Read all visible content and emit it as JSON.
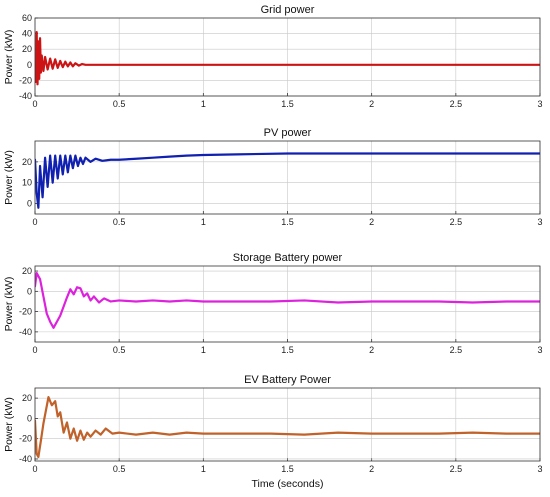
{
  "chart_data": [
    {
      "type": "line",
      "title": "Grid power",
      "ylabel": "Power (kW)",
      "xlabel": "",
      "xlim": [
        0,
        3
      ],
      "ylim": [
        -40,
        60
      ],
      "xticks": [
        0,
        0.5,
        1,
        1.5,
        2,
        2.5,
        3
      ],
      "xtick_labels": [
        "0",
        "0.5",
        "1",
        "1.5",
        "2",
        "2.5",
        "3"
      ],
      "yticks": [
        -40,
        -20,
        0,
        20,
        40,
        60
      ],
      "ytick_labels": [
        "-40",
        "-20",
        "0",
        "20",
        "40",
        "60"
      ],
      "grid": true,
      "color": "#cc1414",
      "series": [
        {
          "x": [
            0,
            0.005,
            0.01,
            0.015,
            0.02,
            0.025,
            0.03,
            0.035,
            0.04,
            0.05,
            0.06,
            0.075,
            0.09,
            0.105,
            0.12,
            0.135,
            0.15,
            0.165,
            0.18,
            0.195,
            0.21,
            0.225,
            0.24,
            0.26,
            0.28,
            0.3,
            0.35,
            0.4,
            0.5,
            0.7,
            1,
            1.5,
            2,
            2.5,
            3
          ],
          "y": [
            0,
            -22,
            42,
            -25,
            30,
            -18,
            34,
            -10,
            12,
            -8,
            10,
            -6,
            8,
            -5,
            7,
            -4,
            5,
            -3,
            4,
            -2,
            3,
            -2,
            2,
            -1,
            1,
            0,
            0,
            0,
            0,
            0,
            0,
            0,
            0,
            0,
            0
          ]
        }
      ]
    },
    {
      "type": "line",
      "title": "PV power",
      "ylabel": "Power (kW)",
      "xlabel": "",
      "xlim": [
        0,
        3
      ],
      "ylim": [
        -5,
        30
      ],
      "xticks": [
        0,
        0.5,
        1,
        1.5,
        2,
        2.5,
        3
      ],
      "xtick_labels": [
        "0",
        "0.5",
        "1",
        "1.5",
        "2",
        "2.5",
        "3"
      ],
      "yticks": [
        0,
        10,
        20
      ],
      "ytick_labels": [
        "0",
        "10",
        "20"
      ],
      "grid": true,
      "color": "#1020b0",
      "series": [
        {
          "x": [
            0,
            0.01,
            0.02,
            0.03,
            0.045,
            0.06,
            0.075,
            0.09,
            0.105,
            0.12,
            0.135,
            0.15,
            0.165,
            0.18,
            0.195,
            0.21,
            0.225,
            0.24,
            0.255,
            0.27,
            0.285,
            0.3,
            0.33,
            0.36,
            0.4,
            0.45,
            0.5,
            0.6,
            0.7,
            0.8,
            0.9,
            1,
            1.2,
            1.5,
            2,
            2.5,
            3
          ],
          "y": [
            21,
            5,
            -2,
            18,
            3,
            22,
            8,
            23,
            10,
            23,
            12,
            23,
            14,
            23,
            15,
            23,
            17,
            23,
            18,
            22,
            19,
            22,
            20,
            21.5,
            20.5,
            21,
            21,
            21.5,
            22,
            22.5,
            23,
            23.3,
            23.6,
            24,
            24,
            24,
            24
          ]
        }
      ]
    },
    {
      "type": "line",
      "title": "Storage Battery power",
      "ylabel": "Power (kW)",
      "xlabel": "",
      "xlim": [
        0,
        3
      ],
      "ylim": [
        -50,
        25
      ],
      "xticks": [
        0,
        0.5,
        1,
        1.5,
        2,
        2.5,
        3
      ],
      "xtick_labels": [
        "0",
        "0.5",
        "1",
        "1.5",
        "2",
        "2.5",
        "3"
      ],
      "yticks": [
        -40,
        -20,
        0,
        20
      ],
      "ytick_labels": [
        "-40",
        "-20",
        "0",
        "20"
      ],
      "grid": true,
      "color": "#dd22dd",
      "series": [
        {
          "x": [
            0,
            0.01,
            0.03,
            0.05,
            0.07,
            0.09,
            0.11,
            0.13,
            0.15,
            0.17,
            0.19,
            0.21,
            0.23,
            0.25,
            0.27,
            0.29,
            0.31,
            0.33,
            0.35,
            0.38,
            0.41,
            0.45,
            0.5,
            0.6,
            0.7,
            0.8,
            0.9,
            1,
            1.2,
            1.4,
            1.6,
            1.8,
            2,
            2.2,
            2.4,
            2.6,
            2.8,
            3
          ],
          "y": [
            5,
            18,
            12,
            -5,
            -22,
            -30,
            -36,
            -30,
            -24,
            -15,
            -6,
            2,
            -3,
            4,
            3,
            -5,
            -2,
            -9,
            -5,
            -11,
            -7,
            -10,
            -9,
            -10,
            -9,
            -10,
            -9,
            -10,
            -10,
            -10,
            -9,
            -11,
            -10,
            -10,
            -10,
            -11,
            -10,
            -10
          ]
        }
      ]
    },
    {
      "type": "line",
      "title": "EV Battery Power",
      "ylabel": "Power (kW)",
      "xlabel": "Time (seconds)",
      "xlim": [
        0,
        3
      ],
      "ylim": [
        -42,
        30
      ],
      "xticks": [
        0,
        0.5,
        1,
        1.5,
        2,
        2.5,
        3
      ],
      "xtick_labels": [
        "0",
        "0.5",
        "1",
        "1.5",
        "2",
        "2.5",
        "3"
      ],
      "yticks": [
        -40,
        -20,
        0,
        20
      ],
      "ytick_labels": [
        "-40",
        "-20",
        "0",
        "20"
      ],
      "grid": true,
      "color": "#c0622a",
      "series": [
        {
          "x": [
            0,
            0.01,
            0.02,
            0.035,
            0.05,
            0.065,
            0.08,
            0.1,
            0.12,
            0.135,
            0.15,
            0.17,
            0.19,
            0.21,
            0.23,
            0.25,
            0.27,
            0.29,
            0.31,
            0.33,
            0.36,
            0.39,
            0.42,
            0.46,
            0.5,
            0.6,
            0.7,
            0.8,
            0.9,
            1,
            1.2,
            1.4,
            1.6,
            1.8,
            2,
            2.2,
            2.4,
            2.6,
            2.8,
            3
          ],
          "y": [
            -2,
            -35,
            -38,
            -22,
            -5,
            8,
            21,
            13,
            17,
            2,
            6,
            -14,
            -4,
            -20,
            -10,
            -22,
            -12,
            -21,
            -14,
            -18,
            -12,
            -16,
            -10,
            -15,
            -14,
            -16,
            -14,
            -16,
            -14,
            -15,
            -15,
            -15,
            -16,
            -14,
            -15,
            -15,
            -15,
            -14,
            -15,
            -15
          ]
        }
      ]
    }
  ]
}
